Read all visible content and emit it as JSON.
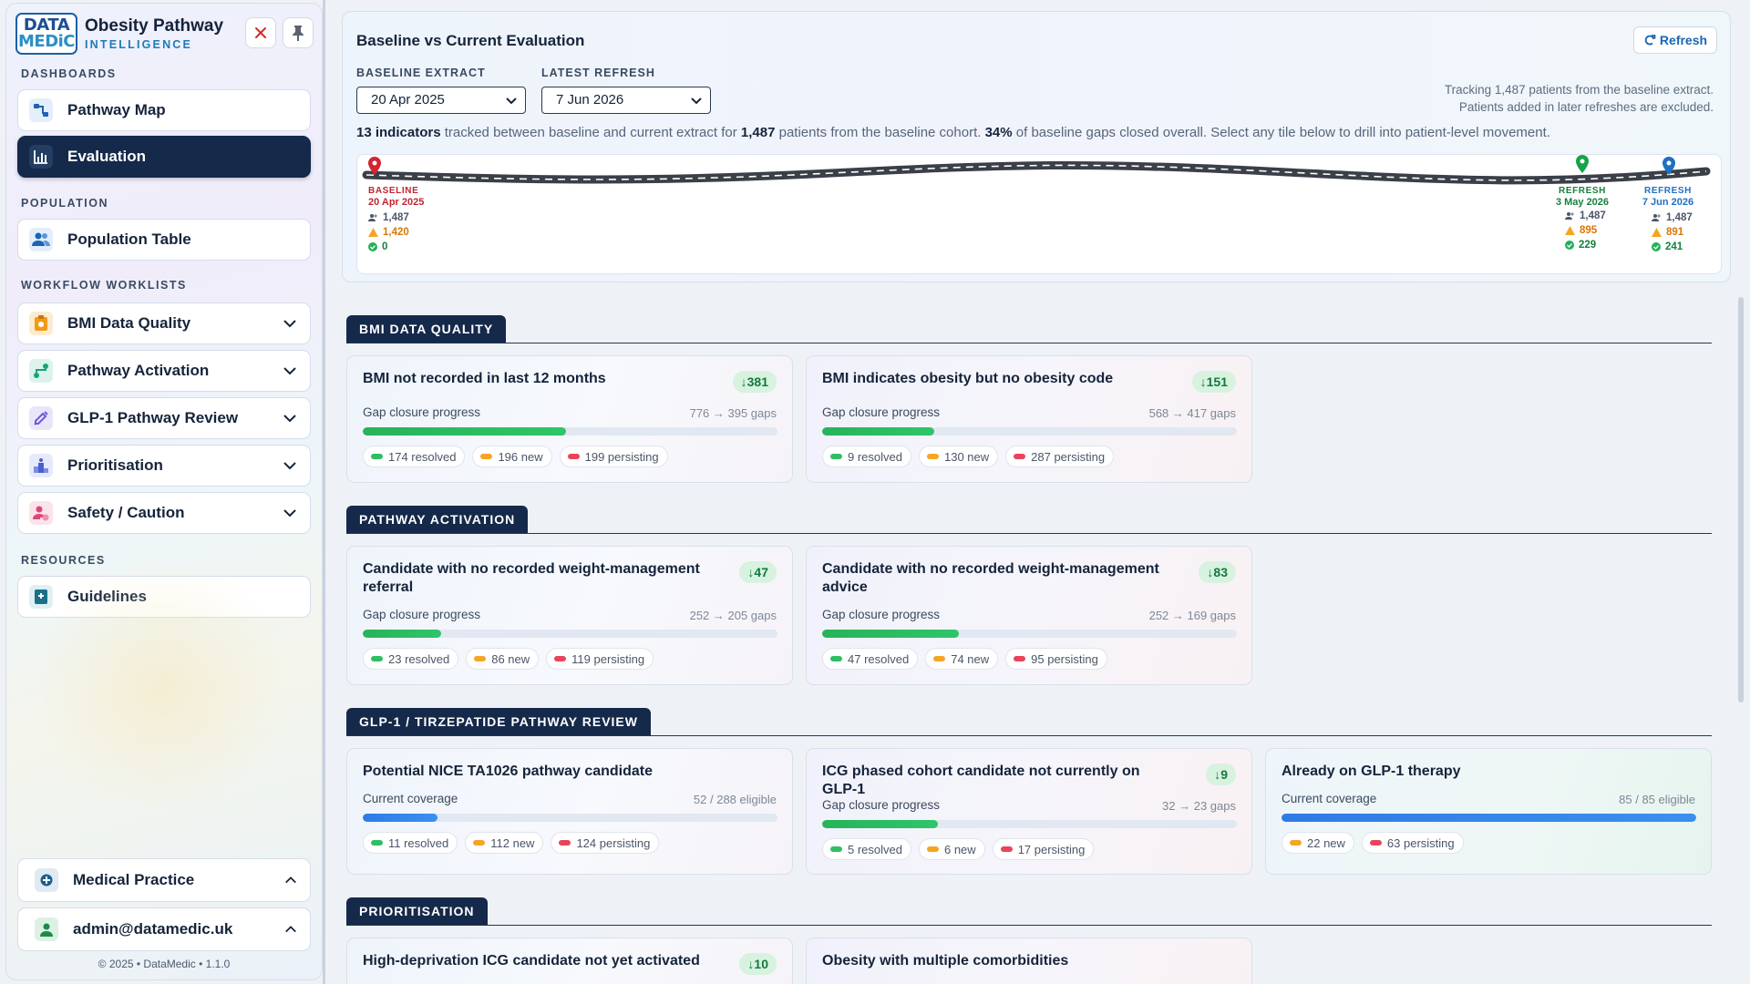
{
  "brand": {
    "logo_top": "DATA",
    "logo_bottom": "MEDiC",
    "title": "Obesity Pathway",
    "subtitle": "INTELLIGENCE"
  },
  "header_buttons": {
    "close_icon": "close-icon",
    "pin_icon": "pin-icon"
  },
  "sidebar": {
    "sections": {
      "dashboards": "DASHBOARDS",
      "population": "POPULATION",
      "workflow": "WORKFLOW WORKLISTS",
      "resources": "RESOURCES"
    },
    "items": [
      {
        "label": "Pathway Map",
        "icon": "pathway-map-icon",
        "active": false
      },
      {
        "label": "Evaluation",
        "icon": "bar-chart-icon",
        "active": true
      },
      {
        "label": "Population Table",
        "icon": "users-icon",
        "active": false
      },
      {
        "label": "BMI Data Quality",
        "icon": "clipboard-icon",
        "active": false
      },
      {
        "label": "Pathway Activation",
        "icon": "route-icon",
        "active": false
      },
      {
        "label": "GLP-1 Pathway Review",
        "icon": "syringe-icon",
        "active": false
      },
      {
        "label": "Prioritisation",
        "icon": "podium-icon",
        "active": false
      },
      {
        "label": "Safety / Caution",
        "icon": "user-warning-icon",
        "active": false
      },
      {
        "label": "Guidelines",
        "icon": "book-icon",
        "active": false
      }
    ],
    "practice": "Medical Practice",
    "user": "admin@datamedic.uk",
    "footer": "© 2025  •  DataMedic  •  1.1.0"
  },
  "evaluation": {
    "title": "Baseline vs Current Evaluation",
    "refresh_label": "Refresh",
    "baseline_label": "BASELINE EXTRACT",
    "baseline_value": "20 Apr 2025",
    "latest_label": "LATEST REFRESH",
    "latest_value": "7 Jun 2026",
    "tracking_line1": "Tracking 1,487 patients from the baseline extract.",
    "tracking_line2": "Patients added in later refreshes are excluded.",
    "summary": {
      "indicators": "13 indicators",
      "s1": " tracked between baseline and current extract for ",
      "patients": "1,487",
      "s2": " patients from the baseline cohort. ",
      "pct": "34%",
      "s3": " of baseline gaps closed overall. Select any tile below to drill into patient-level movement."
    },
    "timeline": [
      {
        "label": "BASELINE",
        "date": "20 Apr 2025",
        "patients": "1,487",
        "gaps": "1,420",
        "resolved": "0",
        "color": "#d4242f"
      },
      {
        "label": "REFRESH",
        "date": "3 May 2026",
        "patients": "1,487",
        "gaps": "895",
        "resolved": "229",
        "color": "#16a34a"
      },
      {
        "label": "REFRESH",
        "date": "7 Jun 2026",
        "patients": "1,487",
        "gaps": "891",
        "resolved": "241",
        "color": "#1f6fc4"
      }
    ]
  },
  "sections": [
    {
      "title": "BMI DATA QUALITY",
      "cards": [
        {
          "title": "BMI not recorded in last 12 months",
          "badge": "↓381",
          "plabel": "Gap closure progress",
          "pval": "776 → 395 gaps",
          "progress": 0.49,
          "resolved": "174 resolved",
          "new": "196 new",
          "persisting": "199 persisting"
        },
        {
          "title": "BMI indicates obesity but no obesity code",
          "badge": "↓151",
          "plabel": "Gap closure progress",
          "pval": "568 → 417 gaps",
          "progress": 0.27,
          "resolved": "9 resolved",
          "new": "130 new",
          "persisting": "287 persisting"
        }
      ]
    },
    {
      "title": "PATHWAY ACTIVATION",
      "cards": [
        {
          "title": "Candidate with no recorded weight-management referral",
          "badge": "↓47",
          "plabel": "Gap closure progress",
          "pval": "252 → 205 gaps",
          "progress": 0.19,
          "resolved": "23 resolved",
          "new": "86 new",
          "persisting": "119 persisting"
        },
        {
          "title": "Candidate with no recorded weight-management advice",
          "badge": "↓83",
          "plabel": "Gap closure progress",
          "pval": "252 → 169 gaps",
          "progress": 0.33,
          "resolved": "47 resolved",
          "new": "74 new",
          "persisting": "95 persisting"
        }
      ]
    },
    {
      "title": "GLP-1 / TIRZEPATIDE PATHWAY REVIEW",
      "cards": [
        {
          "title": "Potential NICE TA1026 pathway candidate",
          "plabel": "Current coverage",
          "pval": "52 / 288 eligible",
          "progress": 0.18,
          "resolved": "11 resolved",
          "new": "112 new",
          "persisting": "124 persisting"
        },
        {
          "title": "ICG phased cohort candidate not currently on GLP-1",
          "badge": "↓9",
          "plabel": "Gap closure progress",
          "pval": "32 → 23 gaps",
          "progress": 0.28,
          "resolved": "5 resolved",
          "new": "6 new",
          "persisting": "17 persisting"
        },
        {
          "title": "Already on GLP-1 therapy",
          "plabel": "Current coverage",
          "pval": "85 / 85 eligible",
          "progress": 1.0,
          "new": "22 new",
          "persisting": "63 persisting"
        }
      ]
    },
    {
      "title": "PRIORITISATION",
      "cards": [
        {
          "title": "High-deprivation ICG candidate not yet activated",
          "badge": "↓10"
        },
        {
          "title": "Obesity with multiple comorbidities"
        }
      ]
    }
  ]
}
